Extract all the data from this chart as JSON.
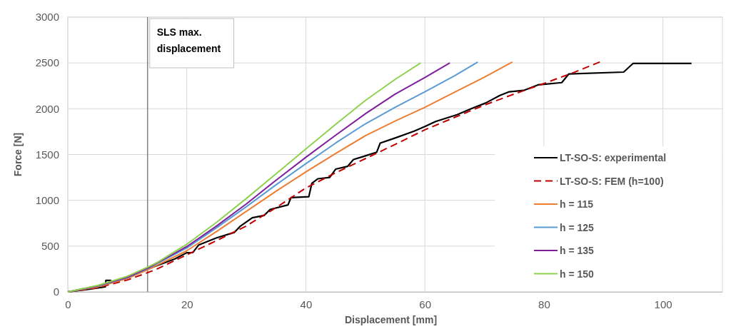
{
  "chart_data": {
    "type": "line",
    "xlabel": "Displacement [mm]",
    "ylabel": "Force [N]",
    "xlim": [
      0,
      110
    ],
    "xticks": [
      0,
      20,
      40,
      60,
      80,
      100
    ],
    "ylim": [
      0,
      3000
    ],
    "yticks": [
      0,
      500,
      1000,
      1500,
      2000,
      2500,
      3000
    ],
    "grid": true,
    "legend": "bottom right",
    "ref_lines": [
      {
        "axis": "x",
        "value": 13.4,
        "label": "SLS max. displacement",
        "color": "#808080"
      }
    ],
    "series": [
      {
        "name": "LT-SO-S: experimental",
        "color": "#000000",
        "line_style": "solid",
        "x": [
          0,
          3,
          6.3,
          6.4,
          7.2,
          7.3,
          10,
          13.4,
          18,
          20,
          21,
          22,
          25,
          28,
          29,
          31,
          33,
          34,
          37,
          37.5,
          40.5,
          41,
          42,
          44,
          45,
          47,
          48,
          50,
          51.9,
          52.5,
          55,
          58.2,
          60,
          61.8,
          65.4,
          67.8,
          70.2,
          72.6,
          74.2,
          76.6,
          79,
          83,
          84.2,
          93.4,
          95,
          104.8
        ],
        "values": [
          0,
          25,
          55,
          125,
          125,
          100,
          null,
          null,
          360,
          428,
          430,
          513,
          590,
          650,
          718,
          810,
          835,
          900,
          950,
          1030,
          1040,
          1185,
          1235,
          1250,
          1340,
          1370,
          1445,
          1485,
          1525,
          1625,
          1680,
          1755,
          1805,
          1860,
          1935,
          2000,
          2062,
          2145,
          2185,
          2200,
          2260,
          2285,
          2380,
          2400,
          2495,
          2495
        ]
      },
      {
        "name": "LT-SO-S: FEM (h=100)",
        "color": "#c00000",
        "line_style": "dashed",
        "x": [
          0,
          5,
          10,
          13.4,
          15,
          20,
          25,
          30,
          35,
          40,
          45,
          50,
          55,
          60,
          65,
          70,
          75,
          80,
          85,
          89.4
        ],
        "values": [
          0,
          45,
          130,
          210,
          250,
          405,
          560,
          720,
          920,
          1135,
          1300,
          1455,
          1610,
          1770,
          1905,
          2040,
          2160,
          2275,
          2395,
          2510
        ]
      },
      {
        "name": "h = 115",
        "color": "#ed7d31",
        "line_style": "solid",
        "x": [
          0,
          5,
          10,
          13.4,
          20,
          25,
          30,
          35,
          40,
          45,
          50,
          55,
          60,
          65,
          70,
          74.7
        ],
        "values": [
          0,
          55,
          145,
          240,
          450,
          660,
          880,
          1100,
          1310,
          1510,
          1705,
          1865,
          2015,
          2180,
          2345,
          2510
        ]
      },
      {
        "name": "h = 125",
        "color": "#5b9bd5",
        "line_style": "solid",
        "x": [
          0,
          5,
          10,
          13.4,
          20,
          25,
          30,
          35,
          40,
          45,
          50,
          55,
          60,
          65,
          68.9
        ],
        "values": [
          0,
          62,
          155,
          255,
          480,
          700,
          930,
          1170,
          1400,
          1625,
          1835,
          2015,
          2185,
          2360,
          2510
        ]
      },
      {
        "name": "h = 135",
        "color": "#7f1f9b",
        "line_style": "solid",
        "x": [
          0,
          5,
          10,
          13.4,
          20,
          25,
          30,
          35,
          40,
          45,
          50,
          55,
          60,
          64.2
        ],
        "values": [
          0,
          65,
          160,
          260,
          495,
          720,
          960,
          1220,
          1470,
          1710,
          1945,
          2160,
          2340,
          2500
        ]
      },
      {
        "name": "h = 150",
        "color": "#8fd14f",
        "line_style": "solid",
        "x": [
          0,
          5,
          10,
          13.4,
          15,
          20,
          25,
          30,
          35,
          40,
          45,
          50,
          55,
          59.3
        ],
        "values": [
          0,
          70,
          170,
          270,
          320,
          520,
          760,
          1020,
          1290,
          1560,
          1830,
          2090,
          2320,
          2500
        ]
      }
    ]
  }
}
